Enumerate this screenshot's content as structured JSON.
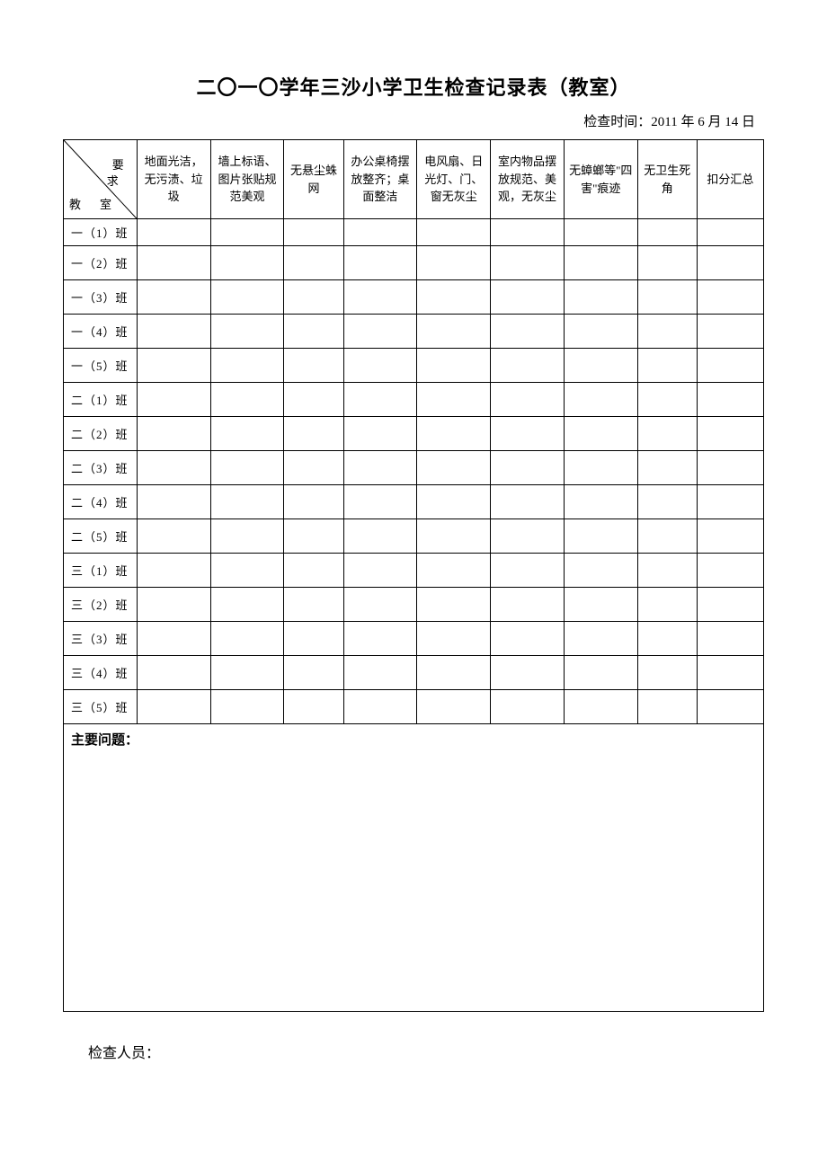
{
  "title": "二〇一〇学年三沙小学卫生检查记录表（教室）",
  "inspection_time_label": "检查时间：",
  "inspection_time_value": "2011 年 6 月 14 日",
  "diagonal": {
    "top": "要",
    "mid": "求",
    "bottom_left": "教",
    "bottom_right": "室"
  },
  "columns": [
    "地面光洁，无污渍、垃圾",
    "墙上标语、图片张贴规范美观",
    "无悬尘蛛网",
    "办公桌椅摆放整齐；桌面整洁",
    "电风扇、日光灯、门、窗无灰尘",
    "室内物品摆放规范、美观，无灰尘",
    "无蟑螂等\"四害\"痕迹",
    "无卫生死角",
    "扣分汇总"
  ],
  "rows": [
    "一（1）班",
    "一（2）班",
    "一（3）班",
    "一（4）班",
    "一（5）班",
    "二（1）班",
    "二（2）班",
    "二（3）班",
    "二（4）班",
    "二（5）班",
    "三（1）班",
    "三（2）班",
    "三（3）班",
    "三（4）班",
    "三（5）班"
  ],
  "main_issues_label": "主要问题：",
  "inspector_label": "检查人员："
}
